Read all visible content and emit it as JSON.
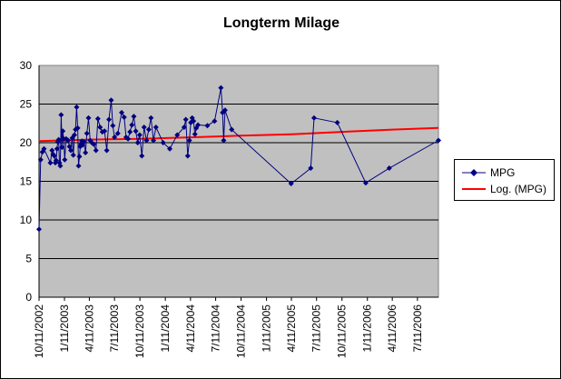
{
  "chart_data": {
    "type": "line",
    "title": "Longterm Milage",
    "xlabel": "",
    "ylabel": "",
    "ylim": [
      0,
      30
    ],
    "yticks": [
      "0",
      "5",
      "10",
      "15",
      "20",
      "25",
      "30"
    ],
    "xlim": [
      "2002-10-11",
      "2006-09-25"
    ],
    "xtick_dates": [
      "2002-10-11",
      "2003-01-11",
      "2003-04-11",
      "2003-07-11",
      "2003-10-11",
      "2004-01-11",
      "2004-04-11",
      "2004-07-11",
      "2004-10-11",
      "2005-01-11",
      "2005-04-11",
      "2005-07-11",
      "2005-10-11",
      "2006-01-11",
      "2006-04-11",
      "2006-07-11"
    ],
    "xtick_labels": [
      "10/11/2002",
      "1/11/2003",
      "4/11/2003",
      "7/11/2003",
      "10/11/2003",
      "1/11/2004",
      "4/11/2004",
      "7/11/2004",
      "10/11/2004",
      "1/11/2005",
      "4/11/2005",
      "7/11/2005",
      "10/11/2005",
      "1/11/2006",
      "4/11/2006",
      "7/11/2006"
    ],
    "grid": true,
    "legend_position": "right",
    "plot_background": "#C0C0C0",
    "series": [
      {
        "name": "MPG",
        "color": "#000080",
        "marker": "diamond",
        "x": [
          "2002-10-11",
          "2002-10-17",
          "2002-10-23",
          "2002-10-29",
          "2002-11-21",
          "2002-11-27",
          "2002-12-01",
          "2002-12-05",
          "2002-12-09",
          "2002-12-12",
          "2002-12-15",
          "2002-12-18",
          "2002-12-21",
          "2002-12-24",
          "2002-12-27",
          "2002-12-30",
          "2003-01-02",
          "2003-01-05",
          "2003-01-08",
          "2003-01-12",
          "2003-01-17",
          "2003-01-24",
          "2003-01-29",
          "2003-02-03",
          "2003-02-08",
          "2003-02-12",
          "2003-02-16",
          "2003-02-20",
          "2003-02-24",
          "2003-02-28",
          "2003-03-03",
          "2003-03-06",
          "2003-03-09",
          "2003-03-12",
          "2003-03-15",
          "2003-03-18",
          "2003-03-23",
          "2003-03-28",
          "2003-04-02",
          "2003-04-08",
          "2003-04-14",
          "2003-04-20",
          "2003-04-27",
          "2003-05-05",
          "2003-05-12",
          "2003-05-20",
          "2003-05-28",
          "2003-06-05",
          "2003-06-13",
          "2003-06-21",
          "2003-06-29",
          "2003-07-05",
          "2003-07-11",
          "2003-07-23",
          "2003-08-06",
          "2003-08-15",
          "2003-08-22",
          "2003-08-29",
          "2003-09-05",
          "2003-09-12",
          "2003-09-19",
          "2003-09-26",
          "2003-10-03",
          "2003-10-10",
          "2003-10-18",
          "2003-10-26",
          "2003-11-04",
          "2003-11-12",
          "2003-11-20",
          "2003-11-29",
          "2003-12-08",
          "2004-01-03",
          "2004-01-27",
          "2004-02-23",
          "2004-03-19",
          "2004-03-25",
          "2004-04-01",
          "2004-04-07",
          "2004-04-12",
          "2004-04-17",
          "2004-04-22",
          "2004-04-27",
          "2004-05-02",
          "2004-05-08",
          "2004-06-11",
          "2004-07-07",
          "2004-07-30",
          "2004-08-05",
          "2004-08-09",
          "2004-08-14",
          "2004-09-07",
          "2005-04-10",
          "2005-06-20",
          "2005-07-02",
          "2005-09-24",
          "2006-01-05",
          "2006-03-31",
          "2006-09-25"
        ],
        "values": [
          8.8,
          17.8,
          18.8,
          19.2,
          17.4,
          19.0,
          18.5,
          18.3,
          17.4,
          17.7,
          19.2,
          20.1,
          20.4,
          17.4,
          17.0,
          23.6,
          19.4,
          21.5,
          20.5,
          17.8,
          20.5,
          20.3,
          19.5,
          19.0,
          20.6,
          18.4,
          21.0,
          21.7,
          24.6,
          21.9,
          17.0,
          18.2,
          19.5,
          19.8,
          20.2,
          19.7,
          20.1,
          18.7,
          21.2,
          23.2,
          20.3,
          20.0,
          19.8,
          19.0,
          23.1,
          22.0,
          21.4,
          21.5,
          19.0,
          23.0,
          25.5,
          22.2,
          20.7,
          21.2,
          23.9,
          23.3,
          20.7,
          20.5,
          21.4,
          22.3,
          23.4,
          21.5,
          20.0,
          21.0,
          18.3,
          22.0,
          20.3,
          21.7,
          23.2,
          20.3,
          22.0,
          20.0,
          19.2,
          21.0,
          22.0,
          23.0,
          18.3,
          20.3,
          22.6,
          23.2,
          22.8,
          21.1,
          21.9,
          22.3,
          22.2,
          22.8,
          27.1,
          23.9,
          20.3,
          24.2,
          21.7,
          14.7,
          16.7,
          23.2,
          22.6,
          14.8,
          16.7,
          20.3
        ]
      },
      {
        "name": "Log. (MPG)",
        "color": "#FF0000",
        "type": "trendline",
        "x": [
          "2002-10-11",
          "2003-04-11",
          "2003-10-11",
          "2004-04-11",
          "2004-10-11",
          "2005-04-11",
          "2005-10-11",
          "2006-04-11",
          "2006-09-25"
        ],
        "values": [
          20.2,
          20.4,
          20.5,
          20.7,
          20.9,
          21.1,
          21.4,
          21.7,
          21.9
        ]
      }
    ]
  }
}
